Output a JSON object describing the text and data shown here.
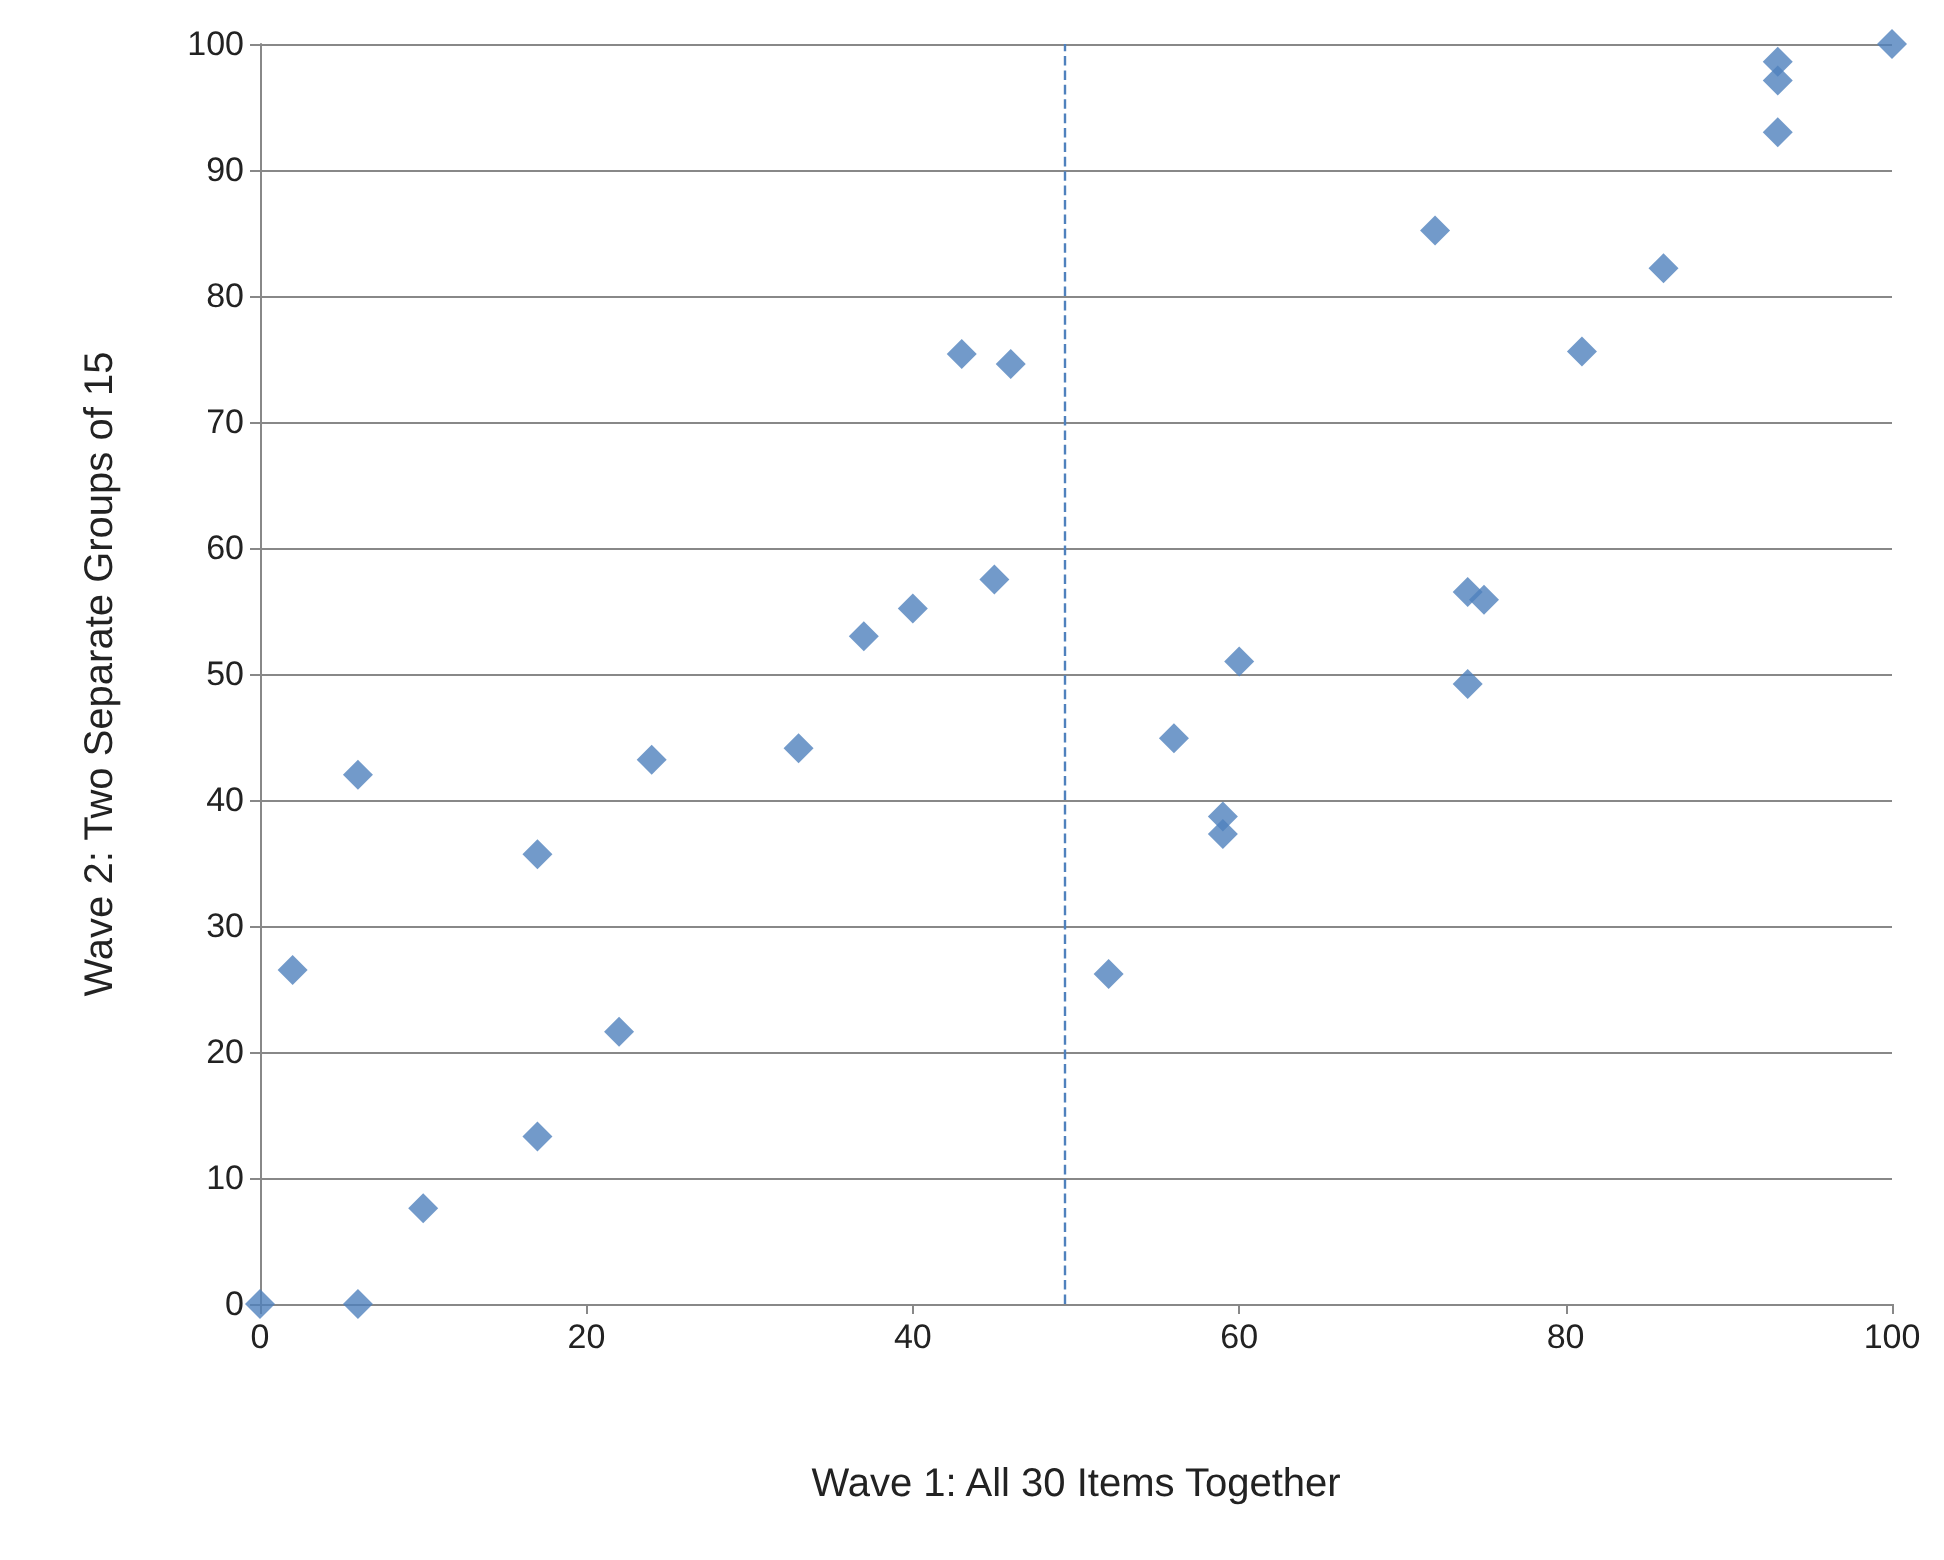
{
  "chart_data": {
    "type": "scatter",
    "xlabel": "Wave 1: All 30 Items Together",
    "ylabel": "Wave 2: Two Separate Groups of 15",
    "x": [
      0,
      2,
      6,
      6,
      10,
      17,
      17,
      22,
      24,
      33,
      37,
      40,
      43,
      45,
      46,
      52,
      56,
      59,
      59,
      60,
      72,
      74,
      74,
      75,
      81,
      86,
      93,
      93,
      93,
      100
    ],
    "series": [
      {
        "color": "#4f81bd",
        "values": [
          0,
          26.5,
          42,
          0,
          7.6,
          35.7,
          13.3,
          21.6,
          43.2,
          44.1,
          53,
          55.2,
          75.4,
          57.5,
          74.6,
          26.2,
          44.9,
          38.7,
          37.3,
          51,
          85.2,
          56.5,
          49.2,
          55.9,
          75.6,
          82.2,
          98.6,
          97.1,
          93,
          100
        ]
      }
    ],
    "xlim": [
      0,
      100
    ],
    "xticks": [
      0,
      20,
      40,
      60,
      80,
      100
    ],
    "ylim": [
      0,
      100
    ],
    "yticks": [
      0,
      10,
      20,
      30,
      40,
      50,
      60,
      70,
      80,
      90,
      100
    ],
    "grid": "y",
    "marker": "diamond",
    "ref_lines": [
      {
        "axis": "x",
        "value": 49.3,
        "color": "#4f81bd",
        "line_style": "dashed"
      }
    ]
  }
}
